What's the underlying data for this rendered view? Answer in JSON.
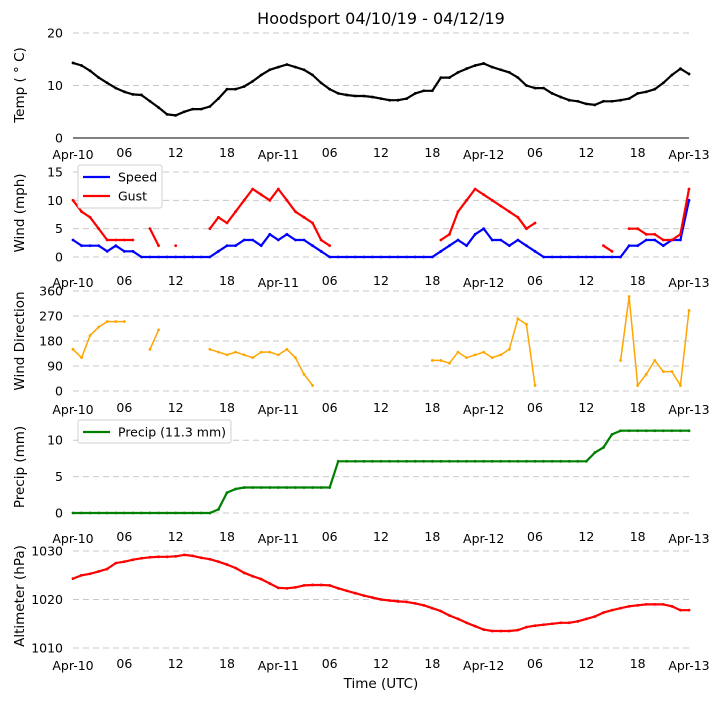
{
  "chart_data": {
    "type": "line",
    "title": "Hoodsport 04/10/19 - 04/12/19",
    "xlabel": "Time (UTC)",
    "x_unit": "hours since Apr-10 00:00 UTC",
    "xlim": [
      0,
      72
    ],
    "xticks": [
      0,
      6,
      12,
      18,
      24,
      30,
      36,
      42,
      48,
      54,
      60,
      66,
      72
    ],
    "xtick_labels": [
      "Apr-10",
      "06",
      "12",
      "18",
      "Apr-11",
      "06",
      "12",
      "18",
      "Apr-12",
      "06",
      "12",
      "18",
      "Apr-13"
    ],
    "x": [
      0,
      1,
      2,
      3,
      4,
      5,
      6,
      7,
      8,
      9,
      10,
      11,
      12,
      13,
      14,
      15,
      16,
      17,
      18,
      19,
      20,
      21,
      22,
      23,
      24,
      25,
      26,
      27,
      28,
      29,
      30,
      31,
      32,
      33,
      34,
      35,
      36,
      37,
      38,
      39,
      40,
      41,
      42,
      43,
      44,
      45,
      46,
      47,
      48,
      49,
      50,
      51,
      52,
      53,
      54,
      55,
      56,
      57,
      58,
      59,
      60,
      61,
      62,
      63,
      64,
      65,
      66,
      67,
      68,
      69,
      70,
      71,
      72
    ],
    "grid": "y, dashed",
    "panels": [
      {
        "ylabel": "Temp ($^\\circ$C)",
        "ylabel_text": "Temp ( ° C)",
        "ylim": [
          0,
          20
        ],
        "yticks": [
          0,
          10,
          20
        ],
        "legend": null,
        "series": [
          {
            "name": "Temp",
            "color": "#000000",
            "values": [
              14.3,
              13.8,
              12.8,
              11.5,
              10.5,
              9.5,
              8.8,
              8.3,
              8.2,
              7.0,
              5.8,
              4.5,
              4.3,
              5.0,
              5.5,
              5.5,
              6.0,
              7.5,
              9.3,
              9.3,
              9.8,
              10.8,
              12.0,
              13.0,
              13.5,
              14.0,
              13.5,
              13.0,
              12.0,
              10.5,
              9.3,
              8.5,
              8.2,
              8.0,
              8.0,
              7.8,
              7.5,
              7.2,
              7.2,
              7.5,
              8.5,
              9.0,
              9.0,
              11.5,
              11.5,
              12.5,
              13.2,
              13.8,
              14.2,
              13.5,
              13.0,
              12.5,
              11.5,
              10.0,
              9.5,
              9.5,
              8.5,
              7.8,
              7.2,
              7.0,
              6.5,
              6.3,
              7.0,
              7.0,
              7.2,
              7.5,
              8.5,
              8.8,
              9.3,
              10.5,
              12.0,
              13.2,
              12.2
            ]
          }
        ]
      },
      {
        "ylabel": "Wind (mph)",
        "ylabel_text": "Wind (mph)",
        "ylim": [
          0,
          15
        ],
        "yticks": [
          0,
          5,
          10,
          15
        ],
        "legend": "top-left",
        "series": [
          {
            "name": "Speed",
            "color": "#0000ff",
            "values": [
              3,
              2,
              2,
              2,
              1,
              2,
              1,
              1,
              0,
              0,
              0,
              0,
              0,
              0,
              0,
              0,
              0,
              1,
              2,
              2,
              3,
              3,
              2,
              4,
              3,
              4,
              3,
              3,
              2,
              1,
              0,
              0,
              0,
              0,
              0,
              0,
              0,
              0,
              0,
              0,
              0,
              0,
              0,
              1,
              2,
              3,
              2,
              4,
              5,
              3,
              3,
              2,
              3,
              2,
              1,
              0,
              0,
              0,
              0,
              0,
              0,
              0,
              0,
              0,
              0,
              2,
              2,
              3,
              3,
              2,
              3,
              3,
              10
            ]
          },
          {
            "name": "Gust",
            "color": "#ff0000",
            "values": [
              10,
              8,
              7,
              5,
              3,
              3,
              3,
              3,
              null,
              5,
              2,
              null,
              2,
              null,
              null,
              null,
              5,
              7,
              6,
              8,
              10,
              12,
              11,
              10,
              12,
              10,
              8,
              7,
              6,
              3,
              2,
              null,
              null,
              null,
              null,
              null,
              null,
              null,
              null,
              null,
              null,
              null,
              null,
              3,
              4,
              8,
              10,
              12,
              11,
              10,
              9,
              8,
              7,
              5,
              6,
              null,
              null,
              null,
              null,
              null,
              null,
              null,
              2,
              1,
              null,
              5,
              5,
              4,
              4,
              3,
              3,
              4,
              12
            ]
          }
        ]
      },
      {
        "ylabel": "Wind Direction",
        "ylabel_text": "Wind Direction",
        "ylim": [
          0,
          360
        ],
        "yticks": [
          0,
          90,
          180,
          270,
          360
        ],
        "legend": null,
        "series": [
          {
            "name": "Direction",
            "color": "#ffa500",
            "values": [
              150,
              120,
              200,
              230,
              250,
              250,
              250,
              null,
              null,
              150,
              220,
              null,
              null,
              null,
              null,
              null,
              150,
              140,
              130,
              140,
              130,
              120,
              140,
              140,
              130,
              150,
              120,
              60,
              20,
              null,
              null,
              null,
              null,
              null,
              null,
              null,
              null,
              null,
              null,
              null,
              null,
              null,
              110,
              110,
              100,
              140,
              120,
              130,
              140,
              120,
              130,
              150,
              260,
              240,
              20,
              null,
              null,
              null,
              null,
              null,
              null,
              null,
              null,
              null,
              110,
              340,
              20,
              60,
              110,
              70,
              70,
              20,
              290
            ]
          }
        ]
      },
      {
        "ylabel": "Precip (mm)",
        "ylabel_text": "Precip (mm)",
        "ylim": [
          0,
          12.5
        ],
        "yticks": [
          0,
          5,
          10
        ],
        "legend": "top-left",
        "series": [
          {
            "name": "Precip (11.3 mm)",
            "color": "#008000",
            "values": [
              0,
              0,
              0,
              0,
              0,
              0,
              0,
              0,
              0,
              0,
              0,
              0,
              0,
              0,
              0,
              0,
              0,
              0.5,
              2.8,
              3.3,
              3.5,
              3.5,
              3.5,
              3.5,
              3.5,
              3.5,
              3.5,
              3.5,
              3.5,
              3.5,
              3.5,
              7.1,
              7.1,
              7.1,
              7.1,
              7.1,
              7.1,
              7.1,
              7.1,
              7.1,
              7.1,
              7.1,
              7.1,
              7.1,
              7.1,
              7.1,
              7.1,
              7.1,
              7.1,
              7.1,
              7.1,
              7.1,
              7.1,
              7.1,
              7.1,
              7.1,
              7.1,
              7.1,
              7.1,
              7.1,
              7.1,
              8.3,
              9.0,
              10.8,
              11.3,
              11.3,
              11.3,
              11.3,
              11.3,
              11.3,
              11.3,
              11.3,
              11.3
            ]
          }
        ]
      },
      {
        "ylabel": "Altimeter (hPa)",
        "ylabel_text": "Altimeter (hPa)",
        "ylim": [
          1010,
          1030
        ],
        "yticks": [
          1010,
          1020,
          1030
        ],
        "legend": null,
        "series": [
          {
            "name": "Altimeter",
            "color": "#ff0000",
            "values": [
              1024.3,
              1025,
              1025.3,
              1025.8,
              1026.3,
              1027.5,
              1027.8,
              1028.2,
              1028.5,
              1028.7,
              1028.8,
              1028.8,
              1028.9,
              1029.2,
              1029,
              1028.6,
              1028.3,
              1027.8,
              1027.2,
              1026.5,
              1025.5,
              1024.8,
              1024.2,
              1023.3,
              1022.4,
              1022.3,
              1022.5,
              1022.9,
              1023,
              1023,
              1022.9,
              1022.3,
              1021.8,
              1021.3,
              1020.8,
              1020.4,
              1020,
              1019.8,
              1019.6,
              1019.5,
              1019.2,
              1018.8,
              1018.2,
              1017.6,
              1016.7,
              1016,
              1015.2,
              1014.5,
              1013.8,
              1013.5,
              1013.5,
              1013.5,
              1013.7,
              1014.3,
              1014.6,
              1014.8,
              1015,
              1015.2,
              1015.2,
              1015.5,
              1016,
              1016.5,
              1017.3,
              1017.8,
              1018.2,
              1018.6,
              1018.8,
              1019,
              1019,
              1019,
              1018.6,
              1017.8,
              1017.8
            ]
          }
        ]
      }
    ]
  }
}
